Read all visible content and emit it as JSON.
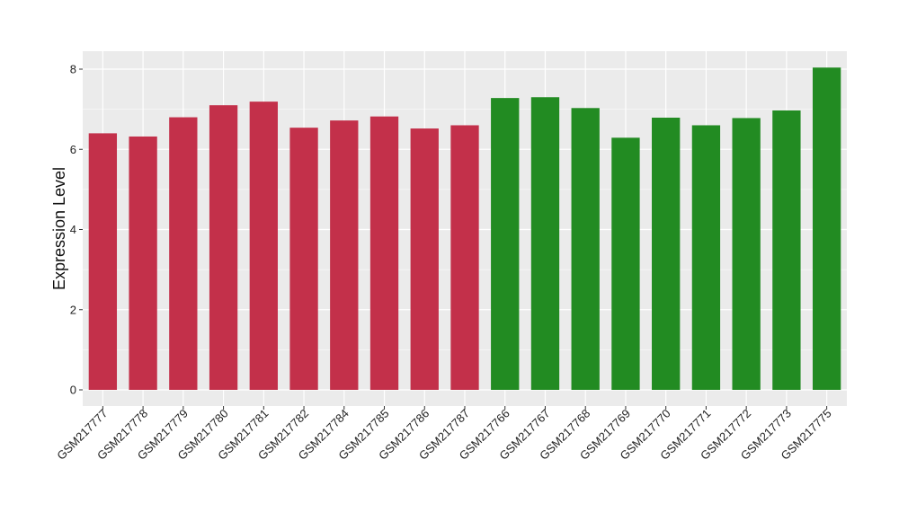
{
  "chart_data": {
    "type": "bar",
    "title": "",
    "xlabel": "",
    "ylabel": "Expression Level",
    "ylim": [
      0,
      8.4
    ],
    "yticks": [
      0,
      2,
      4,
      6,
      8
    ],
    "grid": true,
    "legend": "none",
    "background_color": "#EBEBEB",
    "grid_color": "#FFFFFF",
    "categories": [
      "GSM217777",
      "GSM217778",
      "GSM217779",
      "GSM217780",
      "GSM217781",
      "GSM217782",
      "GSM217784",
      "GSM217785",
      "GSM217786",
      "GSM217787",
      "GSM217766",
      "GSM217767",
      "GSM217768",
      "GSM217769",
      "GSM217770",
      "GSM217771",
      "GSM217772",
      "GSM217773",
      "GSM217775"
    ],
    "values": [
      6.4,
      6.32,
      6.8,
      7.1,
      7.19,
      6.54,
      6.72,
      6.82,
      6.52,
      6.6,
      7.28,
      7.3,
      7.03,
      6.29,
      6.79,
      6.6,
      6.78,
      6.97,
      8.04
    ],
    "groups": [
      "red",
      "red",
      "red",
      "red",
      "red",
      "red",
      "red",
      "red",
      "red",
      "red",
      "green",
      "green",
      "green",
      "green",
      "green",
      "green",
      "green",
      "green",
      "green"
    ],
    "group_colors": {
      "red": "#C3304A",
      "green": "#228B22"
    }
  }
}
